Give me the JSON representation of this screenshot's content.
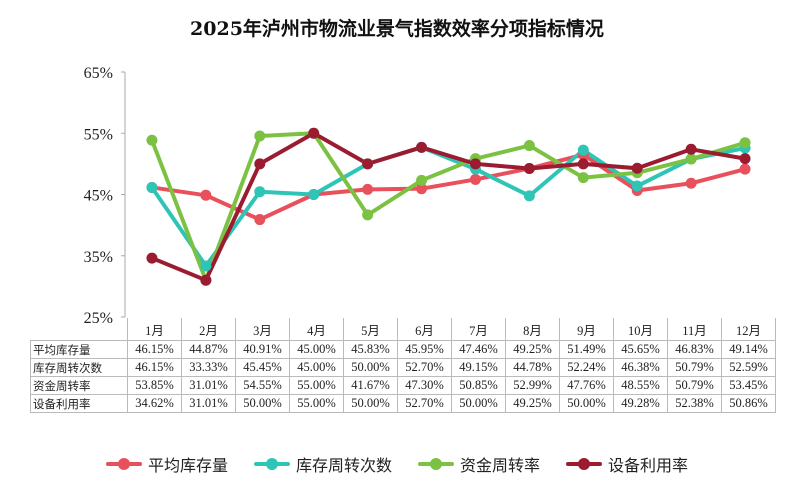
{
  "chart_data": {
    "type": "line",
    "title": "2025年泸州市物流业景气指数效率分项指标情况",
    "categories": [
      "1月",
      "2月",
      "3月",
      "4月",
      "5月",
      "6月",
      "7月",
      "8月",
      "9月",
      "10月",
      "11月",
      "12月"
    ],
    "ylim": [
      25,
      65
    ],
    "yticks": [
      "25%",
      "35%",
      "45%",
      "55%",
      "65%"
    ],
    "ytick_values": [
      25,
      35,
      45,
      55,
      65
    ],
    "legend_position": "bottom",
    "series": [
      {
        "name": "平均库存量",
        "color": "#e8505b",
        "values": [
          46.15,
          44.87,
          40.91,
          45.0,
          45.83,
          45.95,
          47.46,
          49.25,
          51.49,
          45.65,
          46.83,
          49.14
        ],
        "labels": [
          "46.15%",
          "44.87%",
          "40.91%",
          "45.00%",
          "45.83%",
          "45.95%",
          "47.46%",
          "49.25%",
          "51.49%",
          "45.65%",
          "46.83%",
          "49.14%"
        ]
      },
      {
        "name": "库存周转次数",
        "color": "#2ec4b6",
        "values": [
          46.15,
          33.33,
          45.45,
          45.0,
          50.0,
          52.7,
          49.15,
          44.78,
          52.24,
          46.38,
          50.79,
          52.59
        ],
        "labels": [
          "46.15%",
          "33.33%",
          "45.45%",
          "45.00%",
          "50.00%",
          "52.70%",
          "49.15%",
          "44.78%",
          "52.24%",
          "46.38%",
          "50.79%",
          "52.59%"
        ]
      },
      {
        "name": "资金周转率",
        "color": "#7cc242",
        "values": [
          53.85,
          31.01,
          54.55,
          55.0,
          41.67,
          47.3,
          50.85,
          52.99,
          47.76,
          48.55,
          50.79,
          53.45
        ],
        "labels": [
          "53.85%",
          "31.01%",
          "54.55%",
          "55.00%",
          "41.67%",
          "47.30%",
          "50.85%",
          "52.99%",
          "47.76%",
          "48.55%",
          "50.79%",
          "53.45%"
        ]
      },
      {
        "name": "设备利用率",
        "color": "#9b1b30",
        "values": [
          34.62,
          31.01,
          50.0,
          55.0,
          50.0,
          52.7,
          50.0,
          49.25,
          50.0,
          49.28,
          52.38,
          50.86
        ],
        "labels": [
          "34.62%",
          "31.01%",
          "50.00%",
          "55.00%",
          "50.00%",
          "52.70%",
          "50.00%",
          "49.25%",
          "50.00%",
          "49.28%",
          "52.38%",
          "50.86%"
        ]
      }
    ]
  }
}
